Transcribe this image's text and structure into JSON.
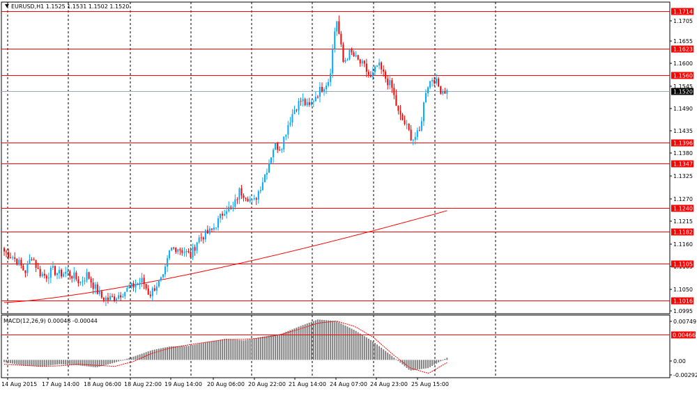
{
  "chart_data": {
    "type": "candlestick",
    "symbol_line": "EURUSD,H1  1.1525 1.1531 1.1502 1.1520",
    "current_price": 1.152,
    "current_price_label": "1.1520",
    "price_ylim": [
      1.0985,
      1.1735
    ],
    "y_ticks": [
      "1.1705",
      "1.1655",
      "1.1600",
      "1.1545",
      "1.1490",
      "1.1435",
      "1.1380",
      "1.1325",
      "1.1270",
      "1.1215",
      "1.1160",
      "1.1105",
      "1.1050",
      "1.0995"
    ],
    "horizontal_levels": [
      {
        "value": 1.1714,
        "label": "1.1714"
      },
      {
        "value": 1.1623,
        "label": "1.1623"
      },
      {
        "value": 1.156,
        "label": "1.1560"
      },
      {
        "value": 1.1396,
        "label": "1.1396"
      },
      {
        "value": 1.1347,
        "label": "1.1347"
      },
      {
        "value": 1.124,
        "label": "1.1240"
      },
      {
        "value": 1.1182,
        "label": "1.1182"
      },
      {
        "value": 1.1105,
        "label": "1.1105"
      },
      {
        "value": 1.1016,
        "label": "1.1016"
      }
    ],
    "x_labels": [
      "14 Aug 2015",
      "17 Aug 14:00",
      "18 Aug 06:00",
      "18 Aug 22:00",
      "19 Aug 14:00",
      "20 Aug 06:00",
      "20 Aug 22:00",
      "21 Aug 14:00",
      "24 Aug 07:00",
      "24 Aug 23:00",
      "25 Aug 15:00"
    ],
    "bull_color": "#00aaff",
    "bear_color": "#ff0000",
    "ma_color": "#ff0000",
    "level_color": "#ff0000",
    "price_anchors": [
      1.1135,
      1.1125,
      1.111,
      1.1085,
      1.1125,
      1.1085,
      1.1075,
      1.109,
      1.108,
      1.1085,
      1.1075,
      1.106,
      1.108,
      1.105,
      1.1025,
      1.102,
      1.1025,
      1.1035,
      1.1045,
      1.1055,
      1.1065,
      1.103,
      1.1055,
      1.107,
      1.114,
      1.1145,
      1.1135,
      1.1125,
      1.1165,
      1.1175,
      1.1185,
      1.121,
      1.124,
      1.1235,
      1.128,
      1.127,
      1.125,
      1.129,
      1.1335,
      1.139,
      1.1385,
      1.144,
      1.148,
      1.15,
      1.148,
      1.151,
      1.153,
      1.155,
      1.17,
      1.159,
      1.1615,
      1.1595,
      1.158,
      1.155,
      1.1585,
      1.1555,
      1.153,
      1.1465,
      1.144,
      1.1405,
      1.142,
      1.153,
      1.1555,
      1.1525,
      1.152
    ],
    "ma_start": 1.1012,
    "ma_end": 1.1233,
    "ma_power": 1.35,
    "macd": {
      "label": "MACD(12,26,9) 0.00048 -0.00044",
      "ylim": [
        -0.0033,
        0.0083
      ],
      "y_ticks": [
        "0.00749",
        "0.00",
        "-0.00292"
      ],
      "level": {
        "value": 0.00466,
        "label": "0.00466"
      },
      "hist_anchors": [
        -0.0004,
        -0.001,
        -0.0012,
        -0.0008,
        -0.001,
        -0.0014,
        -0.0005,
        0.0006,
        0.0018,
        0.0025,
        0.0026,
        0.0033,
        0.0039,
        0.0036,
        0.0043,
        0.0048,
        0.0062,
        0.0075,
        0.0072,
        0.0055,
        0.0034,
        0.0008,
        -0.002,
        -0.0015,
        0.0004
      ],
      "signal_anchors": [
        -0.0008,
        -0.001,
        -0.0012,
        -0.0011,
        -0.0008,
        -0.001,
        -0.0012,
        -0.0003,
        0.0012,
        0.0022,
        0.0028,
        0.0033,
        0.0038,
        0.0038,
        0.0041,
        0.0047,
        0.0057,
        0.0068,
        0.0072,
        0.0062,
        0.0042,
        0.0012,
        -0.0015,
        -0.0025,
        -0.0005
      ]
    }
  }
}
